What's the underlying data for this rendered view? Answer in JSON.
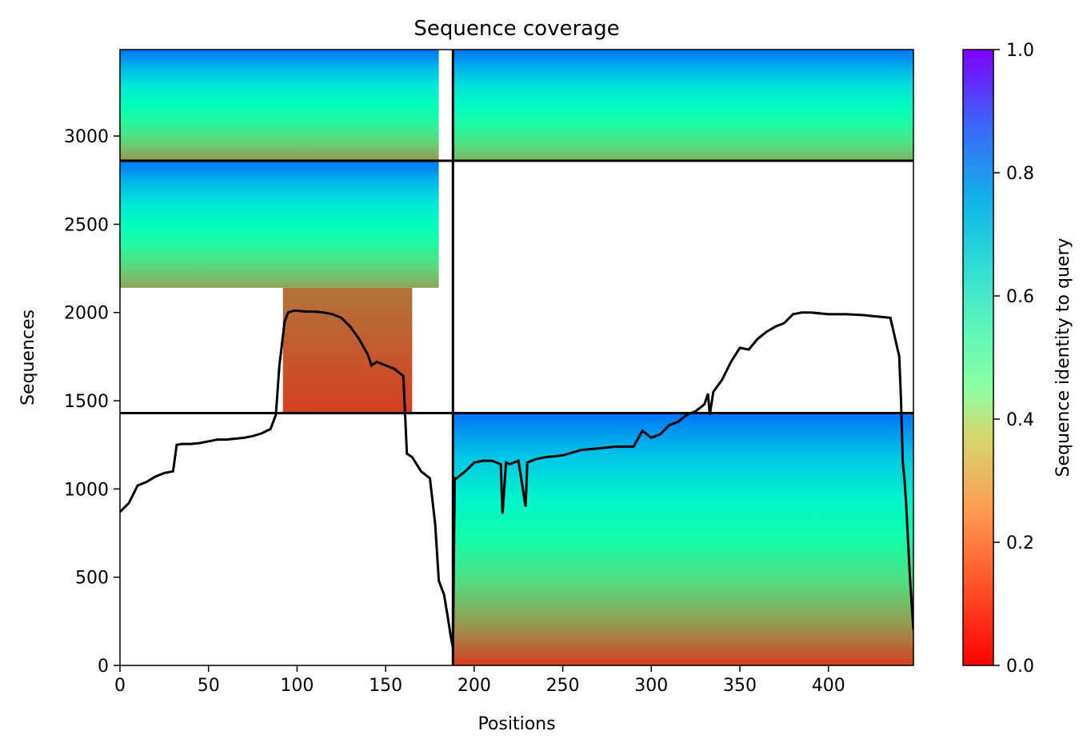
{
  "chart_data": {
    "type": "heatmap",
    "title": "Sequence coverage",
    "xlabel": "Positions",
    "ylabel": "Sequences",
    "xlim": [
      0,
      448
    ],
    "ylim": [
      0,
      3490
    ],
    "xticks": [
      0,
      50,
      100,
      150,
      200,
      250,
      300,
      350,
      400
    ],
    "yticks": [
      0,
      500,
      1000,
      1500,
      2000,
      2500,
      3000
    ],
    "grid": false,
    "colormap": "rainbow_r",
    "colorbar": {
      "label": "Sequence identity to query",
      "range": [
        0,
        1
      ],
      "ticks": [
        0.0,
        0.2,
        0.4,
        0.6,
        0.8,
        1.0
      ],
      "tick_labels": [
        "0.0",
        "0.2",
        "0.4",
        "0.6",
        "0.8",
        "1.0"
      ]
    },
    "chain_boundaries": {
      "x": [
        188
      ],
      "y": [
        1430,
        2860
      ]
    },
    "coverage_blocks": [
      {
        "name": "block-1",
        "x_range": [
          0,
          180
        ],
        "y_range": [
          2860,
          3490
        ],
        "identity_low": 0.2,
        "identity_high": 0.85
      },
      {
        "name": "block-2",
        "x_range": [
          188,
          448
        ],
        "y_range": [
          2860,
          3490
        ],
        "identity_low": 0.25,
        "identity_high": 0.85
      },
      {
        "name": "block-3",
        "x_range": [
          0,
          180
        ],
        "y_range": [
          2140,
          2860
        ],
        "identity_low": 0.22,
        "identity_high": 0.85
      },
      {
        "name": "block-4",
        "x_range": [
          92,
          165
        ],
        "y_range": [
          1430,
          2140
        ],
        "identity_low": 0.08,
        "identity_high": 0.15
      },
      {
        "name": "block-5",
        "x_range": [
          188,
          448
        ],
        "y_range": [
          0,
          1430
        ],
        "identity_low": 0.08,
        "identity_high": 0.85
      }
    ],
    "coverage_line": {
      "x": [
        0,
        5,
        10,
        15,
        20,
        25,
        30,
        32,
        35,
        40,
        45,
        50,
        55,
        60,
        65,
        70,
        75,
        80,
        85,
        88,
        90,
        93,
        95,
        98,
        100,
        105,
        110,
        115,
        120,
        125,
        130,
        135,
        140,
        142,
        145,
        150,
        155,
        160,
        162,
        165,
        170,
        175,
        178,
        180,
        183,
        185,
        187,
        188,
        189,
        190,
        195,
        200,
        205,
        210,
        215,
        216,
        218,
        220,
        225,
        229,
        230,
        235,
        240,
        250,
        260,
        270,
        280,
        290,
        295,
        300,
        305,
        310,
        315,
        320,
        325,
        330,
        332,
        333,
        335,
        340,
        345,
        350,
        355,
        360,
        365,
        370,
        375,
        380,
        385,
        390,
        400,
        410,
        420,
        425,
        430,
        435,
        440,
        441,
        442,
        443,
        444,
        446,
        448
      ],
      "y": [
        870,
        920,
        1020,
        1040,
        1070,
        1090,
        1100,
        1250,
        1255,
        1255,
        1260,
        1270,
        1280,
        1280,
        1285,
        1290,
        1300,
        1315,
        1340,
        1420,
        1700,
        1950,
        2000,
        2010,
        2010,
        2005,
        2005,
        2000,
        1990,
        1970,
        1920,
        1850,
        1760,
        1700,
        1720,
        1700,
        1680,
        1640,
        1200,
        1180,
        1100,
        1060,
        800,
        480,
        400,
        280,
        150,
        100,
        1060,
        1060,
        1100,
        1150,
        1160,
        1160,
        1140,
        860,
        1150,
        1140,
        1160,
        900,
        1150,
        1170,
        1180,
        1190,
        1220,
        1230,
        1240,
        1240,
        1330,
        1290,
        1310,
        1360,
        1380,
        1420,
        1440,
        1480,
        1540,
        1420,
        1550,
        1620,
        1720,
        1800,
        1790,
        1850,
        1890,
        1920,
        1940,
        1990,
        2000,
        2000,
        1990,
        1990,
        1985,
        1980,
        1975,
        1970,
        1750,
        1500,
        1150,
        1050,
        900,
        500,
        200
      ]
    }
  }
}
